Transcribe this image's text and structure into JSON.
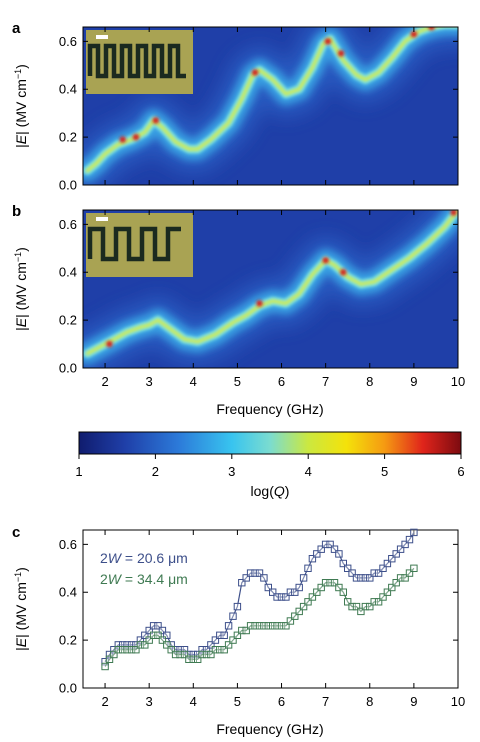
{
  "colors": {
    "heat_low": "#1f3fa8",
    "heat_mid": "#2fb5e6",
    "heat_yellow": "#f2e10c",
    "heat_high": "#d11a1a",
    "series_a": "#3d4f8a",
    "series_b": "#3f7a52",
    "inset_bg": "#a9a353",
    "inset_line": "#1b2a1f"
  },
  "chart_data": [
    {
      "panel": "a",
      "type": "heatmap",
      "xlabel": "Frequency (GHz)",
      "ylabel": "|E| (MV cm⁻¹)",
      "xlim": [
        1.5,
        10
      ],
      "ylim": [
        0,
        0.66
      ],
      "x_ticks": [
        2,
        3,
        4,
        5,
        6,
        7,
        8,
        9,
        10
      ],
      "y_ticks": [
        "0.0",
        "0.2",
        "0.4",
        "0.6"
      ],
      "ridge": {
        "x": [
          1.6,
          1.8,
          2.0,
          2.3,
          2.6,
          2.9,
          3.1,
          3.3,
          3.6,
          3.9,
          4.1,
          4.4,
          4.8,
          5.1,
          5.35,
          5.5,
          5.8,
          6.1,
          6.4,
          6.7,
          6.95,
          7.1,
          7.4,
          7.7,
          7.9,
          8.2,
          8.5,
          8.8,
          9.1,
          9.4,
          9.7,
          10.0
        ],
        "y": [
          0.06,
          0.09,
          0.13,
          0.17,
          0.19,
          0.22,
          0.27,
          0.24,
          0.18,
          0.15,
          0.15,
          0.19,
          0.26,
          0.36,
          0.46,
          0.48,
          0.44,
          0.38,
          0.4,
          0.49,
          0.59,
          0.61,
          0.52,
          0.46,
          0.44,
          0.47,
          0.53,
          0.6,
          0.64,
          0.66,
          0.67,
          0.67
        ]
      },
      "hot_spots": [
        {
          "x": 2.4,
          "y": 0.19
        },
        {
          "x": 2.7,
          "y": 0.2
        },
        {
          "x": 3.15,
          "y": 0.27
        },
        {
          "x": 5.4,
          "y": 0.47
        },
        {
          "x": 7.05,
          "y": 0.6
        },
        {
          "x": 7.35,
          "y": 0.55
        },
        {
          "x": 9.0,
          "y": 0.63
        },
        {
          "x": 9.4,
          "y": 0.66
        }
      ]
    },
    {
      "panel": "b",
      "type": "heatmap",
      "xlabel": "Frequency (GHz)",
      "ylabel": "|E| (MV cm⁻¹)",
      "xlim": [
        1.5,
        10
      ],
      "ylim": [
        0,
        0.66
      ],
      "x_ticks": [
        2,
        3,
        4,
        5,
        6,
        7,
        8,
        9,
        10
      ],
      "y_ticks": [
        "0.0",
        "0.2",
        "0.4",
        "0.6"
      ],
      "ridge": {
        "x": [
          1.6,
          1.9,
          2.2,
          2.5,
          2.8,
          3.0,
          3.2,
          3.5,
          3.8,
          4.1,
          4.5,
          4.9,
          5.2,
          5.5,
          5.8,
          6.1,
          6.4,
          6.7,
          7.0,
          7.2,
          7.5,
          7.8,
          8.1,
          8.5,
          8.9,
          9.3,
          9.7,
          10.0
        ],
        "y": [
          0.06,
          0.09,
          0.12,
          0.15,
          0.17,
          0.18,
          0.2,
          0.16,
          0.12,
          0.11,
          0.14,
          0.19,
          0.22,
          0.26,
          0.28,
          0.27,
          0.31,
          0.39,
          0.45,
          0.43,
          0.38,
          0.35,
          0.36,
          0.41,
          0.46,
          0.52,
          0.59,
          0.66
        ]
      },
      "hot_spots": [
        {
          "x": 2.1,
          "y": 0.1
        },
        {
          "x": 5.5,
          "y": 0.27
        },
        {
          "x": 7.0,
          "y": 0.45
        },
        {
          "x": 7.4,
          "y": 0.4
        },
        {
          "x": 9.9,
          "y": 0.65
        }
      ]
    },
    {
      "panel": "colorbar",
      "type": "colorbar",
      "xlabel": "log(Q)",
      "range": [
        1,
        6
      ],
      "ticks": [
        "1",
        "2",
        "3",
        "4",
        "5",
        "6"
      ]
    },
    {
      "panel": "c",
      "type": "line",
      "xlabel": "Frequency (GHz)",
      "ylabel": "|E| (MV cm⁻¹)",
      "xlim": [
        1.5,
        10
      ],
      "ylim": [
        0,
        0.66
      ],
      "x_ticks": [
        2,
        3,
        4,
        5,
        6,
        7,
        8,
        9,
        10
      ],
      "y_ticks": [
        "0.0",
        "0.2",
        "0.4",
        "0.6"
      ],
      "legend": [
        {
          "prefix": "2",
          "var": "W",
          "text": " = 20.6 μm"
        },
        {
          "prefix": "2",
          "var": "W",
          "text": " = 34.4 μm"
        }
      ],
      "series": [
        {
          "x": [
            2.0,
            2.1,
            2.2,
            2.3,
            2.4,
            2.5,
            2.6,
            2.7,
            2.8,
            2.9,
            3.0,
            3.1,
            3.2,
            3.3,
            3.4,
            3.5,
            3.6,
            3.7,
            3.8,
            3.9,
            4.0,
            4.1,
            4.2,
            4.3,
            4.4,
            4.5,
            4.6,
            4.7,
            4.8,
            4.9,
            5.0,
            5.1,
            5.2,
            5.3,
            5.4,
            5.5,
            5.6,
            5.7,
            5.8,
            5.9,
            6.0,
            6.1,
            6.2,
            6.3,
            6.4,
            6.5,
            6.6,
            6.7,
            6.8,
            6.9,
            7.0,
            7.1,
            7.2,
            7.3,
            7.4,
            7.5,
            7.6,
            7.7,
            7.8,
            7.9,
            8.0,
            8.1,
            8.2,
            8.3,
            8.4,
            8.5,
            8.6,
            8.7,
            8.8,
            8.9,
            9.0
          ],
          "y": [
            0.11,
            0.14,
            0.16,
            0.18,
            0.18,
            0.18,
            0.18,
            0.18,
            0.2,
            0.22,
            0.24,
            0.26,
            0.26,
            0.24,
            0.22,
            0.18,
            0.16,
            0.16,
            0.16,
            0.14,
            0.14,
            0.14,
            0.16,
            0.16,
            0.18,
            0.2,
            0.22,
            0.22,
            0.26,
            0.3,
            0.34,
            0.44,
            0.46,
            0.48,
            0.48,
            0.48,
            0.46,
            0.42,
            0.4,
            0.38,
            0.38,
            0.38,
            0.4,
            0.4,
            0.42,
            0.46,
            0.5,
            0.54,
            0.56,
            0.58,
            0.6,
            0.6,
            0.58,
            0.56,
            0.52,
            0.5,
            0.48,
            0.46,
            0.46,
            0.46,
            0.46,
            0.48,
            0.48,
            0.5,
            0.52,
            0.54,
            0.56,
            0.58,
            0.6,
            0.62,
            0.65
          ]
        },
        {
          "x": [
            2.0,
            2.1,
            2.2,
            2.3,
            2.4,
            2.5,
            2.6,
            2.7,
            2.8,
            2.9,
            3.0,
            3.1,
            3.2,
            3.3,
            3.4,
            3.5,
            3.6,
            3.7,
            3.8,
            3.9,
            4.0,
            4.1,
            4.2,
            4.3,
            4.4,
            4.5,
            4.6,
            4.7,
            4.8,
            4.9,
            5.0,
            5.1,
            5.2,
            5.3,
            5.4,
            5.5,
            5.6,
            5.7,
            5.8,
            5.9,
            6.0,
            6.1,
            6.2,
            6.3,
            6.4,
            6.5,
            6.6,
            6.7,
            6.8,
            6.9,
            7.0,
            7.1,
            7.2,
            7.3,
            7.4,
            7.5,
            7.6,
            7.7,
            7.8,
            7.9,
            8.0,
            8.1,
            8.2,
            8.3,
            8.4,
            8.5,
            8.6,
            8.7,
            8.8,
            8.9,
            9.0
          ],
          "y": [
            0.09,
            0.12,
            0.14,
            0.16,
            0.16,
            0.16,
            0.16,
            0.16,
            0.18,
            0.18,
            0.2,
            0.22,
            0.22,
            0.2,
            0.18,
            0.16,
            0.14,
            0.14,
            0.14,
            0.12,
            0.12,
            0.12,
            0.14,
            0.14,
            0.14,
            0.16,
            0.16,
            0.16,
            0.18,
            0.2,
            0.22,
            0.24,
            0.24,
            0.26,
            0.26,
            0.26,
            0.26,
            0.26,
            0.26,
            0.26,
            0.26,
            0.26,
            0.28,
            0.3,
            0.32,
            0.34,
            0.36,
            0.38,
            0.4,
            0.42,
            0.44,
            0.44,
            0.44,
            0.42,
            0.4,
            0.36,
            0.34,
            0.34,
            0.32,
            0.34,
            0.34,
            0.36,
            0.36,
            0.38,
            0.4,
            0.42,
            0.44,
            0.46,
            0.46,
            0.48,
            0.5
          ]
        }
      ]
    }
  ]
}
